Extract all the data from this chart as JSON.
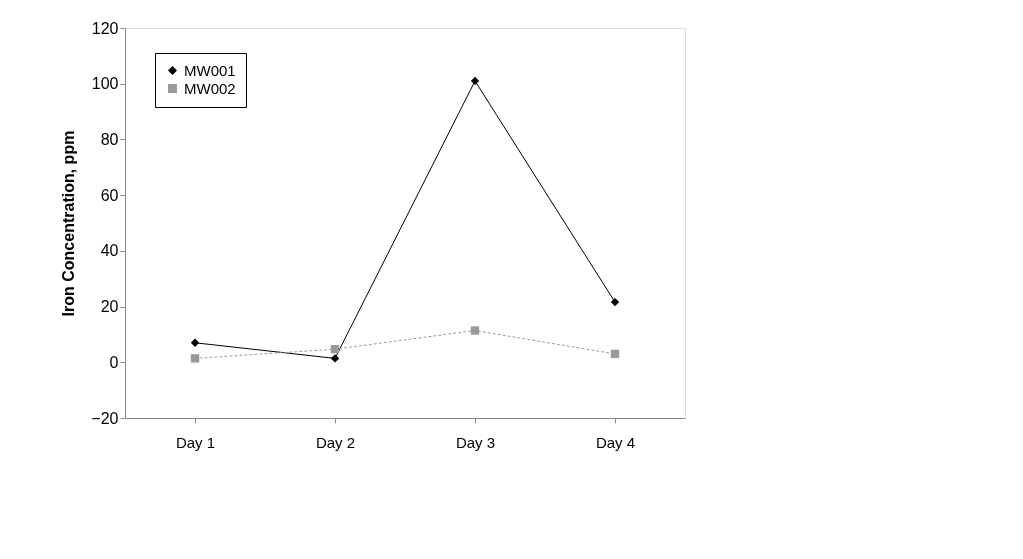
{
  "chart_data": {
    "type": "line",
    "ylabel": "Iron Concentration, ppm",
    "categories": [
      "Day 1",
      "Day 2",
      "Day 3",
      "Day 4"
    ],
    "series": [
      {
        "name": "MW001",
        "color": "#000000",
        "values": [
          7,
          1.4,
          101,
          21.6
        ],
        "marker": "diamond",
        "line_style": "solid"
      },
      {
        "name": "MW002",
        "color": "#999999",
        "values": [
          1.4,
          4.7,
          11.4,
          3
        ],
        "marker": "square",
        "line_style": "dotted"
      }
    ],
    "ylim": [
      -20,
      120
    ],
    "yticks": [
      -20,
      0,
      20,
      40,
      60,
      80,
      100,
      120
    ],
    "grid": false,
    "legend": "top left"
  }
}
